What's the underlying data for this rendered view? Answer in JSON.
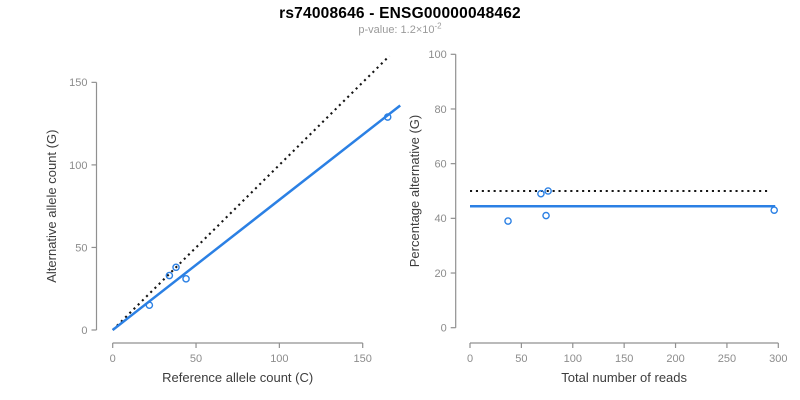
{
  "header": {
    "title": "rs74008646 - ENSG00000048462",
    "pvalue_prefix": "p-value: 1.2×10",
    "pvalue_exponent": "-2"
  },
  "colors": {
    "accent_blue": "#2b80e4",
    "dotted_black": "#151515",
    "axis_gray": "#909090",
    "tick_label_gray": "#8c8c8c",
    "axis_label_dark": "#3d3d3d"
  },
  "chart_data": [
    {
      "type": "scatter",
      "xlabel": "Reference allele count (C)",
      "ylabel": "Alternative allele count (G)",
      "xticks": [
        0,
        50,
        100,
        150
      ],
      "yticks": [
        0,
        50,
        100,
        150
      ],
      "xlim": [
        0,
        172
      ],
      "ylim": [
        0,
        166
      ],
      "grid": false,
      "points": [
        [
          22,
          15
        ],
        [
          34,
          33
        ],
        [
          38,
          38
        ],
        [
          44,
          31
        ],
        [
          165,
          129
        ]
      ],
      "lines": [
        {
          "name": "identity-line",
          "style": "dotted",
          "color": "#151515",
          "from": [
            0,
            0
          ],
          "to": [
            166,
            166
          ]
        },
        {
          "name": "fit-line",
          "style": "solid",
          "color": "#2b80e4",
          "from": [
            0,
            0
          ],
          "to": [
            172.5,
            136
          ]
        }
      ]
    },
    {
      "type": "scatter",
      "xlabel": "Total number of reads",
      "ylabel": "Percentage alternative (G)",
      "xticks": [
        0,
        50,
        100,
        150,
        200,
        250,
        300
      ],
      "yticks": [
        0,
        20,
        40,
        60,
        80,
        100
      ],
      "xlim": [
        0,
        302
      ],
      "ylim": [
        0,
        100
      ],
      "grid": false,
      "points": [
        [
          37,
          39
        ],
        [
          69,
          49
        ],
        [
          76,
          50
        ],
        [
          74,
          41
        ],
        [
          296,
          43
        ]
      ],
      "lines": [
        {
          "name": "expected-line",
          "style": "dotted",
          "color": "#151515",
          "from": [
            0,
            50
          ],
          "to": [
            292,
            50
          ]
        },
        {
          "name": "fit-line",
          "style": "solid",
          "color": "#2b80e4",
          "from": [
            0,
            44.4
          ],
          "to": [
            297,
            44.4
          ]
        }
      ]
    }
  ]
}
